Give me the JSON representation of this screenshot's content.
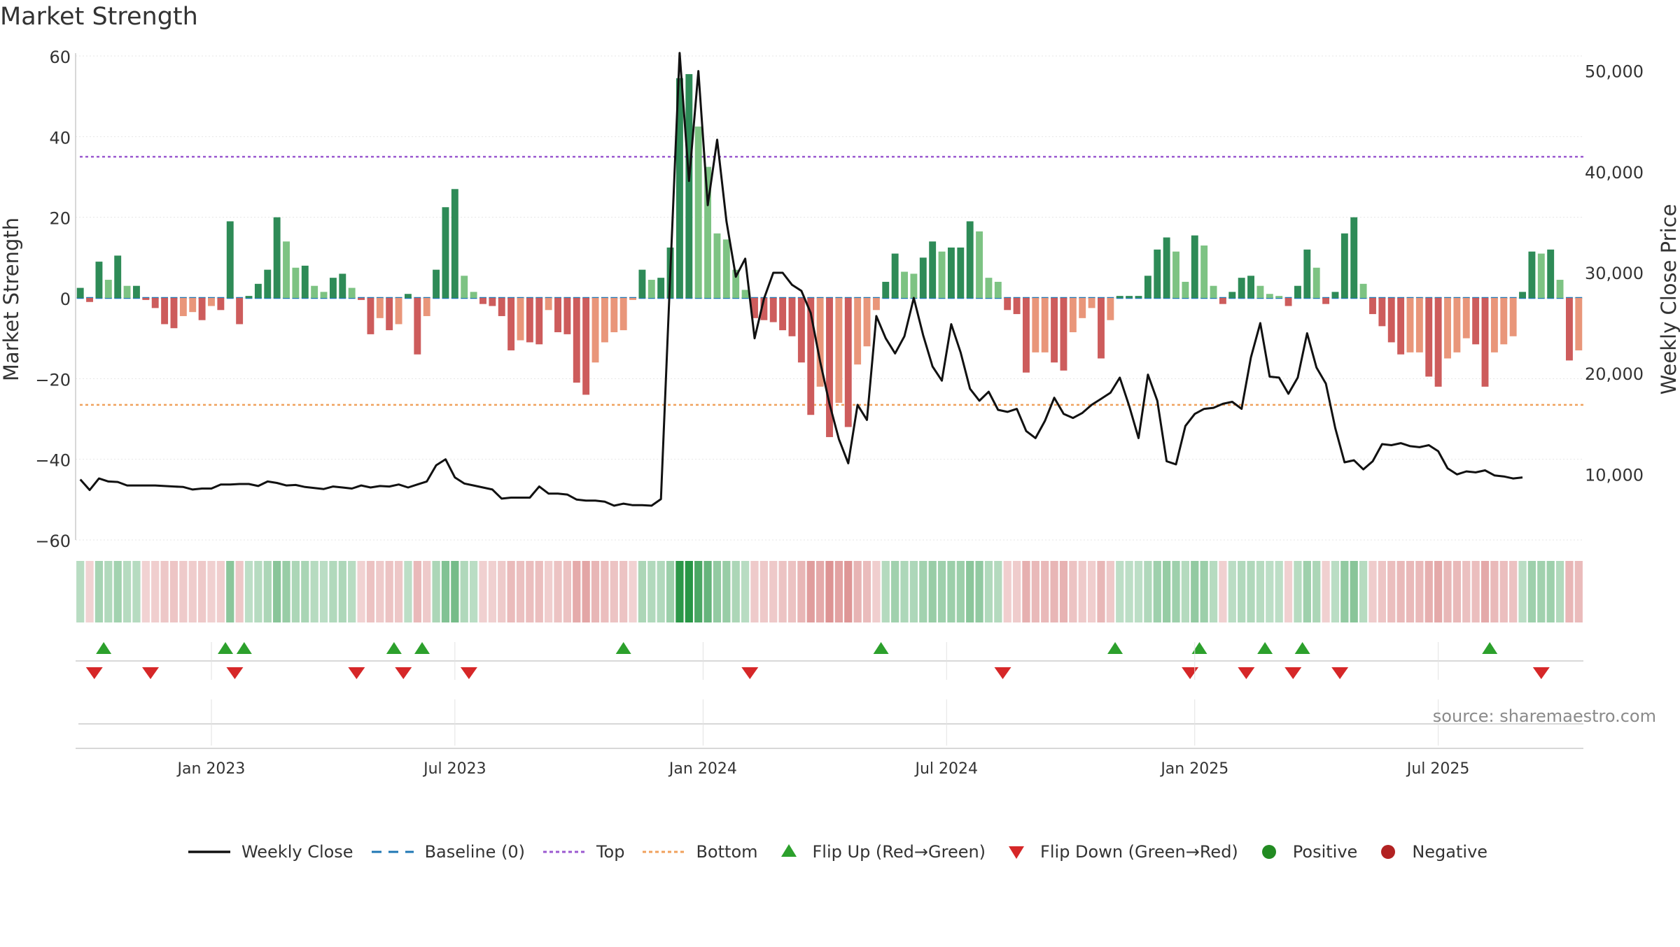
{
  "chart_data": {
    "type": "bar",
    "title": "Market Strength",
    "ylabel_left": "Market Strength",
    "ylabel_right": "Weekly Close Price",
    "ylim_left": [
      -60,
      60
    ],
    "ylim_right": [
      3500,
      51500
    ],
    "yticks_left": [
      60,
      40,
      20,
      0,
      -20,
      -40,
      -60
    ],
    "yticks_left_labels": [
      "60",
      "40",
      "20",
      "0",
      "−20",
      "−40",
      "−60"
    ],
    "yticks_right": [
      50000,
      40000,
      30000,
      20000,
      10000
    ],
    "yticks_right_labels": [
      "50,000",
      "40,000",
      "30,000",
      "20,000",
      "10,000"
    ],
    "x_start": "2022-09-23",
    "x_step_days": 7,
    "xticks": [
      "Jan 2023",
      "Jul 2023",
      "Jan 2024",
      "Jul 2024",
      "Jan 2025",
      "Jul 2025"
    ],
    "xtick_week_index": [
      14.5,
      40.5,
      67,
      93,
      119.5,
      145.5
    ],
    "top_line": 35,
    "bottom_line": -26.5,
    "baseline": 0,
    "strength": [
      2.5,
      -1,
      9,
      4.5,
      10.5,
      3,
      3,
      -0.5,
      -2.5,
      -6.5,
      -7.5,
      -4.5,
      -3.5,
      -5.5,
      -2,
      -3,
      19,
      -6.5,
      0.5,
      3.5,
      7,
      20,
      14,
      7.5,
      8,
      3,
      1.5,
      5,
      6,
      2.5,
      -0.5,
      -9,
      -5,
      -8,
      -6.5,
      1,
      -14,
      -4.5,
      7,
      22.5,
      27,
      5.5,
      1.5,
      -1.5,
      -2,
      -4.5,
      -13,
      -10.5,
      -11,
      -11.5,
      -3,
      -8.5,
      -9,
      -21,
      -24,
      -16,
      -11,
      -8.5,
      -8,
      -0.5,
      7,
      4.5,
      5,
      12.5,
      54.5,
      55.5,
      42.5,
      32.5,
      16,
      14.5,
      7,
      2,
      -5,
      -5.5,
      -6,
      -8,
      -9.5,
      -16,
      -29,
      -22,
      -34.5,
      -26,
      -32,
      -16.5,
      -12,
      -3,
      4,
      11,
      6.5,
      6,
      10,
      14,
      11.5,
      12.5,
      12.5,
      19,
      16.5,
      5,
      4,
      -3,
      -4,
      -18.5,
      -13.5,
      -13.5,
      -16,
      -18,
      -8.5,
      -5,
      -2.5,
      -15,
      -5.5,
      0.5,
      0.5,
      0.5,
      5.5,
      12,
      15,
      11.5,
      4,
      15.5,
      13,
      3,
      -1.5,
      1.5,
      5,
      5.5,
      3,
      1,
      0.5,
      -2,
      3,
      12,
      7.5,
      -1.5,
      1.5,
      16,
      20,
      3.5,
      -4,
      -7,
      -11,
      -14,
      -13.5,
      -13.5,
      -19.5,
      -22,
      -15,
      -13.5,
      -10,
      -11.5,
      -22,
      -13.5,
      -11.5,
      -9.5,
      1.5,
      11.5,
      11,
      12,
      4.5,
      -15.5,
      -13
    ],
    "close": [
      9500,
      8450,
      9600,
      9300,
      9250,
      8900,
      8900,
      8900,
      8900,
      8850,
      8800,
      8750,
      8500,
      8600,
      8600,
      9000,
      9000,
      9050,
      9050,
      8850,
      9300,
      9150,
      8900,
      8950,
      8750,
      8650,
      8550,
      8800,
      8700,
      8600,
      8900,
      8700,
      8850,
      8800,
      9000,
      8700,
      9000,
      9300,
      10900,
      11500,
      9700,
      9100,
      8900,
      8700,
      8500,
      7600,
      7700,
      7700,
      7700,
      8800,
      8100,
      8100,
      8000,
      7500,
      7400,
      7400,
      7300,
      6900,
      7100,
      6950,
      6950,
      6900,
      7550,
      30000,
      51800,
      39100,
      50000,
      36700,
      43200,
      35100,
      29600,
      31400,
      23500,
      27400,
      30000,
      30000,
      28800,
      28200,
      26000,
      21200,
      17000,
      13500,
      11100,
      16900,
      15400,
      25700,
      23500,
      22000,
      23700,
      27500,
      23800,
      20700,
      19300,
      24900,
      22100,
      18500,
      17300,
      18200,
      16400,
      16200,
      16500,
      14300,
      13600,
      15300,
      17600,
      16000,
      15600,
      16100,
      16900,
      17500,
      18100,
      19600,
      16800,
      13600,
      19900,
      17300,
      11300,
      11000,
      14800,
      16000,
      16500,
      16600,
      17000,
      17200,
      16500,
      21600,
      25000,
      19700,
      19600,
      18000,
      19600,
      24000,
      20600,
      19000,
      14600,
      11200,
      11400,
      10500,
      11300,
      13000,
      12900,
      13100,
      12800,
      12700,
      12900,
      12300,
      10600,
      10000,
      10300,
      10200,
      10400,
      9900,
      9800,
      9600,
      9700
    ],
    "heat_strip": "weekly heat intensity coloured by sign and magnitude of Market Strength",
    "flip_up_weeks": [
      2.5,
      15.5,
      17.5,
      33.5,
      36.5,
      58,
      85.5,
      110.5,
      119.5,
      126.5,
      130.5,
      150.5
    ],
    "flip_down_weeks": [
      1.5,
      7.5,
      16.5,
      29.5,
      34.5,
      41.5,
      71.5,
      98.5,
      118.5,
      124.5,
      129.5,
      134.5,
      156
    ],
    "legend": [
      {
        "label": "Weekly Close",
        "kind": "solid-line",
        "color": "#111111"
      },
      {
        "label": "Baseline (0)",
        "kind": "dashed-line",
        "color": "#1f77b4"
      },
      {
        "label": "Top",
        "kind": "dotted-line",
        "color": "#9b59d0"
      },
      {
        "label": "Bottom",
        "kind": "dotted-line",
        "color": "#f0a15c"
      },
      {
        "label": "Flip Up (Red→Green)",
        "kind": "triangle-up",
        "color": "#2ca02c"
      },
      {
        "label": "Flip Down (Green→Red)",
        "kind": "triangle-down",
        "color": "#d62728"
      },
      {
        "label": "Positive",
        "kind": "dot",
        "color": "#228b22"
      },
      {
        "label": "Negative",
        "kind": "dot",
        "color": "#b22222"
      }
    ]
  },
  "colors": {
    "pos_dark": "#2e8b57",
    "pos_light": "#7dc383",
    "neg_dark": "#cd5c5c",
    "neg_light": "#e9967a",
    "close_line": "#111111",
    "baseline": "#1f77b4",
    "top": "#9b59d0",
    "bottom": "#f0a15c",
    "grid": "#e6e6e6",
    "axis": "#cccccc",
    "up_marker": "#2ca02c",
    "down_marker": "#d62728"
  },
  "source": "source: sharemaestro.com"
}
